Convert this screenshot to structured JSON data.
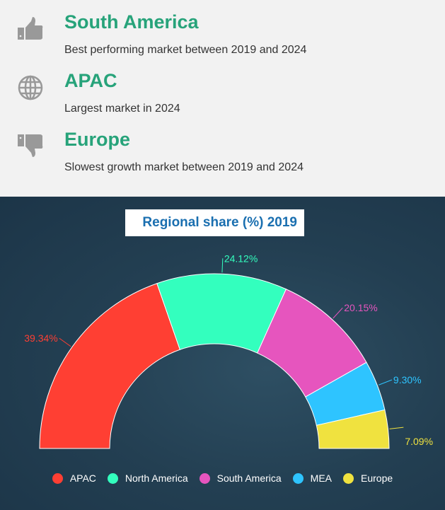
{
  "highlights": [
    {
      "icon": "thumbs-up-icon",
      "title": "South America",
      "subtitle": "Best performing market between 2019 and 2024"
    },
    {
      "icon": "globe-icon",
      "title": "APAC",
      "subtitle": "Largest market in 2024"
    },
    {
      "icon": "thumbs-down-icon",
      "title": "Europe",
      "subtitle": "Slowest growth market between 2019 and 2024"
    }
  ],
  "chart_data": {
    "type": "pie",
    "variant": "half-donut",
    "title": "Regional share (%) 2019",
    "categories": [
      "APAC",
      "North America",
      "South America",
      "MEA",
      "Europe"
    ],
    "values": [
      39.34,
      24.12,
      20.15,
      9.3,
      7.09
    ],
    "labels": [
      "39.34%",
      "24.12%",
      "20.15%",
      "9.30%",
      "7.09%"
    ],
    "colors": [
      "#ff3f33",
      "#33ffbe",
      "#e655be",
      "#2ec4ff",
      "#f0e23f"
    ],
    "legend": "bottom"
  }
}
